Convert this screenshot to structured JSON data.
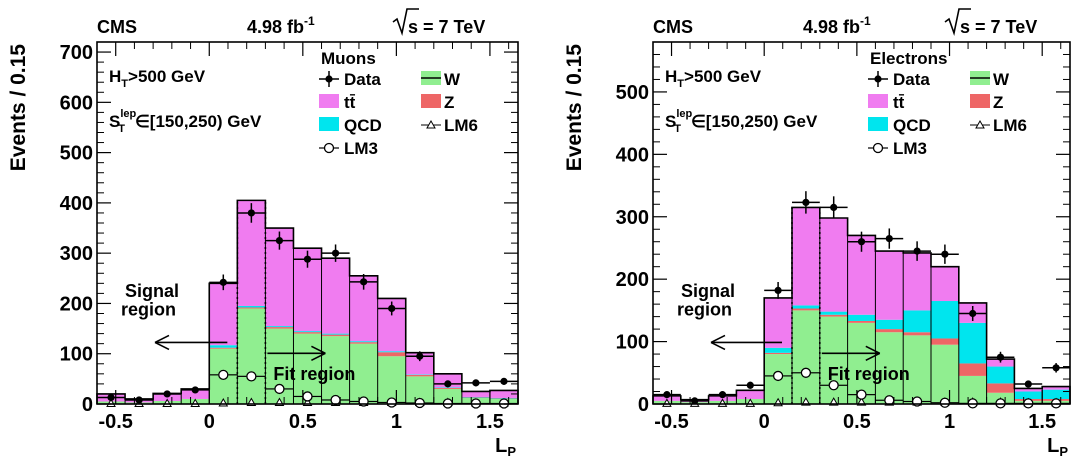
{
  "chart_data": [
    {
      "type": "bar",
      "stacked": true,
      "experiment": "CMS",
      "lumi": "4.98 fb",
      "lumi_sup": "-1",
      "energy": "s = 7 TeV",
      "ylabel": "Events / 0.15",
      "xlabel_main": "L",
      "xlabel_sub": "P",
      "cut_ht": ">500 GeV",
      "cut_st": "∈[150,250) GeV",
      "legend_title": "Muons",
      "legend": {
        "data": "Data",
        "ttbar": "tt̄",
        "qcd": "QCD",
        "lm3": "LM3",
        "w": "W",
        "z": "Z",
        "lm6": "LM6"
      },
      "signal_label_1": "Signal",
      "signal_label_2": "region",
      "fit_label": "Fit region",
      "xlim": [
        -0.6,
        1.65
      ],
      "ylim": [
        0,
        720
      ],
      "xticks": [
        -0.5,
        0,
        0.5,
        1,
        1.5
      ],
      "xtick_labels": [
        "-0.5",
        "0",
        "0.5",
        "1",
        "1.5"
      ],
      "yticks": [
        0,
        100,
        200,
        300,
        400,
        500,
        600,
        700
      ],
      "ytick_labels": [
        "0",
        "100",
        "200",
        "300",
        "400",
        "500",
        "600",
        "700"
      ],
      "bin_edges": [
        -0.6,
        -0.45,
        -0.3,
        -0.15,
        0,
        0.15,
        0.3,
        0.45,
        0.6,
        0.75,
        0.9,
        1.05,
        1.2,
        1.35,
        1.5,
        1.65
      ],
      "series": [
        {
          "name": "W",
          "values": [
            5,
            3,
            6,
            10,
            110,
            190,
            150,
            140,
            135,
            120,
            95,
            55,
            30,
            12,
            10
          ]
        },
        {
          "name": "Z",
          "values": [
            0,
            0,
            0,
            0,
            2,
            2,
            3,
            3,
            3,
            3,
            8,
            3,
            2,
            1,
            1
          ]
        },
        {
          "name": "QCD",
          "values": [
            0,
            0,
            0,
            0,
            5,
            3,
            2,
            2,
            2,
            2,
            2,
            1,
            1,
            1,
            1
          ]
        },
        {
          "name": "tt̄",
          "values": [
            15,
            7,
            15,
            20,
            123,
            210,
            195,
            165,
            150,
            130,
            105,
            43,
            27,
            11,
            15
          ]
        }
      ],
      "data_points": {
        "x": [
          -0.525,
          -0.375,
          -0.225,
          -0.075,
          0.075,
          0.225,
          0.375,
          0.525,
          0.675,
          0.825,
          0.975,
          1.125,
          1.275,
          1.425,
          1.575
        ],
        "y": [
          13,
          8,
          20,
          28,
          242,
          380,
          325,
          288,
          300,
          243,
          190,
          95,
          40,
          42,
          45
        ]
      },
      "lm3_points": {
        "x": [
          0.075,
          0.225,
          0.375,
          0.525,
          0.675,
          0.825,
          0.975,
          1.125,
          1.275,
          1.425,
          1.575
        ],
        "y": [
          58,
          55,
          30,
          15,
          8,
          5,
          3,
          2,
          1,
          1,
          1
        ]
      },
      "lm6_points": {
        "x": [
          -0.525,
          -0.375,
          -0.225,
          -0.075,
          0.075,
          0.225,
          0.375,
          0.525,
          0.675,
          0.825,
          0.975,
          1.125,
          1.275,
          1.425,
          1.575
        ],
        "y": [
          1,
          1,
          1,
          1,
          2,
          3,
          3,
          3,
          3,
          3,
          3,
          3,
          3,
          2,
          2
        ]
      },
      "boundaries": [
        0.15,
        0.3
      ],
      "colors": {
        "ttbar": "#f07cf0",
        "w": "#90ee90",
        "z": "#ee6666",
        "qcd": "#00e5ee",
        "data": "#000000"
      }
    },
    {
      "type": "bar",
      "stacked": true,
      "experiment": "CMS",
      "lumi": "4.98 fb",
      "lumi_sup": "-1",
      "energy": "s = 7 TeV",
      "ylabel": "Events / 0.15",
      "xlabel_main": "L",
      "xlabel_sub": "P",
      "cut_ht": ">500 GeV",
      "cut_st": "∈[150,250) GeV",
      "legend_title": "Electrons",
      "legend": {
        "data": "Data",
        "ttbar": "tt̄",
        "qcd": "QCD",
        "lm3": "LM3",
        "w": "W",
        "z": "Z",
        "lm6": "LM6"
      },
      "signal_label_1": "Signal",
      "signal_label_2": "region",
      "fit_label": "Fit region",
      "xlim": [
        -0.6,
        1.65
      ],
      "ylim": [
        0,
        580
      ],
      "xticks": [
        -0.5,
        0,
        0.5,
        1,
        1.5
      ],
      "xtick_labels": [
        "-0.5",
        "0",
        "0.5",
        "1",
        "1.5"
      ],
      "yticks": [
        0,
        100,
        200,
        300,
        400,
        500
      ],
      "ytick_labels": [
        "0",
        "100",
        "200",
        "300",
        "400",
        "500"
      ],
      "bin_edges": [
        -0.6,
        -0.45,
        -0.3,
        -0.15,
        0,
        0.15,
        0.3,
        0.45,
        0.6,
        0.75,
        0.9,
        1.05,
        1.2,
        1.35,
        1.5,
        1.65
      ],
      "series": [
        {
          "name": "W",
          "values": [
            5,
            3,
            5,
            8,
            80,
            150,
            140,
            130,
            115,
            110,
            95,
            45,
            18,
            5,
            5
          ]
        },
        {
          "name": "Z",
          "values": [
            0,
            0,
            0,
            0,
            2,
            3,
            3,
            3,
            5,
            5,
            10,
            20,
            15,
            3,
            3
          ]
        },
        {
          "name": "QCD",
          "values": [
            0,
            0,
            0,
            0,
            8,
            5,
            5,
            10,
            15,
            35,
            60,
            65,
            27,
            12,
            15
          ]
        },
        {
          "name": "tt̄",
          "values": [
            8,
            4,
            8,
            14,
            80,
            157,
            150,
            127,
            110,
            92,
            55,
            32,
            12,
            5,
            5
          ]
        }
      ],
      "data_points": {
        "x": [
          -0.525,
          -0.375,
          -0.225,
          -0.075,
          0.075,
          0.225,
          0.375,
          0.525,
          0.675,
          0.825,
          0.975,
          1.125,
          1.275,
          1.425,
          1.575
        ],
        "y": [
          15,
          5,
          15,
          30,
          182,
          323,
          315,
          260,
          265,
          245,
          240,
          145,
          75,
          32,
          58
        ]
      },
      "lm3_points": {
        "x": [
          0.075,
          0.225,
          0.375,
          0.525,
          0.675,
          0.825,
          0.975,
          1.125,
          1.275,
          1.425,
          1.575
        ],
        "y": [
          45,
          50,
          30,
          15,
          6,
          4,
          2,
          1,
          1,
          1,
          1
        ]
      },
      "lm6_points": {
        "x": [
          -0.525,
          -0.375,
          -0.225,
          -0.075,
          0.075,
          0.225,
          0.375,
          0.525,
          0.675,
          0.825,
          0.975,
          1.125,
          1.275,
          1.425,
          1.575
        ],
        "y": [
          1,
          1,
          1,
          1,
          2,
          3,
          3,
          3,
          3,
          3,
          3,
          3,
          3,
          2,
          2
        ]
      },
      "boundaries": [
        0.15,
        0.3
      ],
      "colors": {
        "ttbar": "#f07cf0",
        "w": "#90ee90",
        "z": "#ee6666",
        "qcd": "#00e5ee",
        "data": "#000000"
      }
    }
  ]
}
